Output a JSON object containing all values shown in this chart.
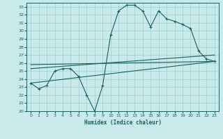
{
  "xlabel": "Humidex (Indice chaleur)",
  "bg_color": "#c8eaea",
  "line_color": "#1a5f5f",
  "grid_color": "#9ecece",
  "xlim": [
    -0.5,
    23.5
  ],
  "ylim": [
    20,
    33.5
  ],
  "xticks": [
    0,
    1,
    2,
    3,
    4,
    5,
    6,
    7,
    8,
    9,
    10,
    11,
    12,
    13,
    14,
    15,
    16,
    17,
    18,
    19,
    20,
    21,
    22,
    23
  ],
  "yticks": [
    20,
    21,
    22,
    23,
    24,
    25,
    26,
    27,
    28,
    29,
    30,
    31,
    32,
    33
  ],
  "series1_x": [
    0,
    1,
    2,
    3,
    4,
    5,
    6,
    7,
    8,
    9,
    10,
    11,
    12,
    13,
    14,
    15,
    16,
    17,
    18,
    19,
    20,
    21,
    22,
    23
  ],
  "series1_y": [
    23.5,
    22.8,
    23.2,
    25.0,
    25.3,
    25.3,
    24.3,
    22.0,
    20.0,
    23.2,
    29.5,
    32.5,
    33.2,
    33.2,
    32.5,
    30.5,
    32.5,
    31.5,
    31.2,
    30.8,
    30.3,
    27.5,
    26.5,
    26.2
  ],
  "line2_x": [
    0,
    23
  ],
  "line2_y": [
    23.5,
    26.2
  ],
  "line3_x": [
    0,
    23
  ],
  "line3_y": [
    25.3,
    27.0
  ],
  "line4_x": [
    0,
    23
  ],
  "line4_y": [
    25.8,
    26.2
  ]
}
